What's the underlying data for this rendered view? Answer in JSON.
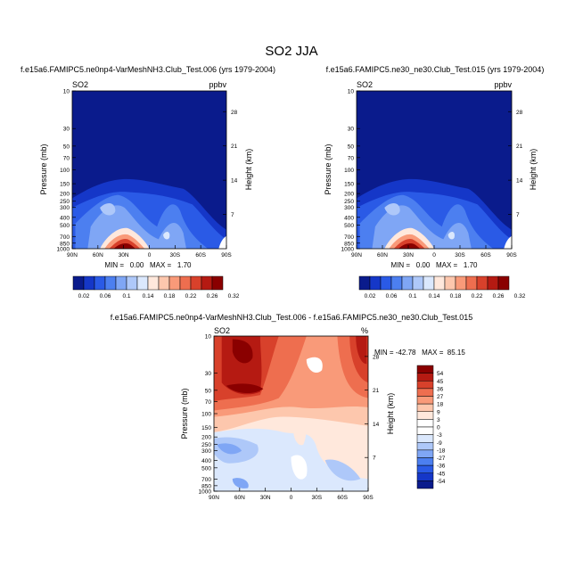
{
  "main_title": "SO2 JJA",
  "chart_data": [
    {
      "type": "heatmap",
      "title": "f.e15a6.FAMIPC5.ne0np4-VarMeshNH3.Club_Test.006 (yrs 1979-2004)",
      "variable": "SO2",
      "units": "ppbv",
      "xlabel": "",
      "ylabel": "Pressure (mb)",
      "y2label": "Height (km)",
      "x_ticks": [
        "90N",
        "60N",
        "30N",
        "0",
        "30S",
        "60S",
        "90S"
      ],
      "y_ticks": [
        "10",
        "30",
        "50",
        "70",
        "100",
        "150",
        "200",
        "250",
        "300",
        "400",
        "500",
        "700",
        "850",
        "1000"
      ],
      "y2_ticks": [
        "28",
        "21",
        "14",
        "7"
      ],
      "y_scale": "log",
      "ylim": [
        1000,
        10
      ],
      "stats": "MIN =   0.00   MAX =   1.70",
      "min": 0.0,
      "max": 1.7,
      "colorbar_levels": [
        "0.02",
        "0.06",
        "0.1",
        "0.14",
        "0.18",
        "0.22",
        "0.26",
        "0.32"
      ]
    },
    {
      "type": "heatmap",
      "title": "f.e15a6.FAMIPC5.ne30_ne30.Club_Test.015 (yrs 1979-2004)",
      "variable": "SO2",
      "units": "ppbv",
      "xlabel": "",
      "ylabel": "Pressure (mb)",
      "y2label": "Height (km)",
      "x_ticks": [
        "90N",
        "60N",
        "30N",
        "0",
        "30S",
        "60S",
        "90S"
      ],
      "y_ticks": [
        "10",
        "30",
        "50",
        "70",
        "100",
        "150",
        "200",
        "250",
        "300",
        "400",
        "500",
        "700",
        "850",
        "1000"
      ],
      "y2_ticks": [
        "28",
        "21",
        "14",
        "7"
      ],
      "y_scale": "log",
      "ylim": [
        1000,
        10
      ],
      "stats": "MIN =   0.00   MAX =   1.70",
      "min": 0.0,
      "max": 1.7,
      "colorbar_levels": [
        "0.02",
        "0.06",
        "0.1",
        "0.14",
        "0.18",
        "0.22",
        "0.26",
        "0.32"
      ]
    },
    {
      "type": "heatmap",
      "title": "f.e15a6.FAMIPC5.ne0np4-VarMeshNH3.Club_Test.006 - f.e15a6.FAMIPC5.ne30_ne30.Club_Test.015",
      "variable": "SO2",
      "units": "%",
      "xlabel": "",
      "ylabel": "Pressure (mb)",
      "y2label": "Height (km)",
      "x_ticks": [
        "90N",
        "60N",
        "30N",
        "0",
        "30S",
        "60S",
        "90S"
      ],
      "y_ticks": [
        "10",
        "30",
        "50",
        "70",
        "100",
        "150",
        "200",
        "250",
        "300",
        "400",
        "500",
        "700",
        "850",
        "1000"
      ],
      "y2_ticks": [
        "28",
        "21",
        "14",
        "7"
      ],
      "y_scale": "log",
      "ylim": [
        1000,
        10
      ],
      "stats": "MIN = -42.78   MAX =  85.15",
      "min": -42.78,
      "max": 85.15,
      "colorbar_levels": [
        "54",
        "45",
        "36",
        "27",
        "18",
        "9",
        "3",
        "0",
        "-3",
        "-9",
        "-18",
        "-27",
        "-36",
        "-45",
        "-54"
      ]
    }
  ],
  "colors": {
    "abs_scale": [
      "#0a1b8c",
      "#1537c8",
      "#2a5ae6",
      "#4c7ff0",
      "#7fa6f5",
      "#aec8f9",
      "#dbe8fd",
      "#ffe8dc",
      "#fdc7ad",
      "#f99a79",
      "#ee6e4f",
      "#d8412b",
      "#b51a12",
      "#8a0000"
    ],
    "diff_scale": [
      "#8a0000",
      "#b51a12",
      "#d8412b",
      "#ee6e4f",
      "#f99a79",
      "#fdc7ad",
      "#ffe8dc",
      "#ffffff",
      "#ffffff",
      "#dbe8fd",
      "#aec8f9",
      "#7fa6f5",
      "#4c7ff0",
      "#2a5ae6",
      "#1537c8",
      "#0a1b8c"
    ]
  }
}
